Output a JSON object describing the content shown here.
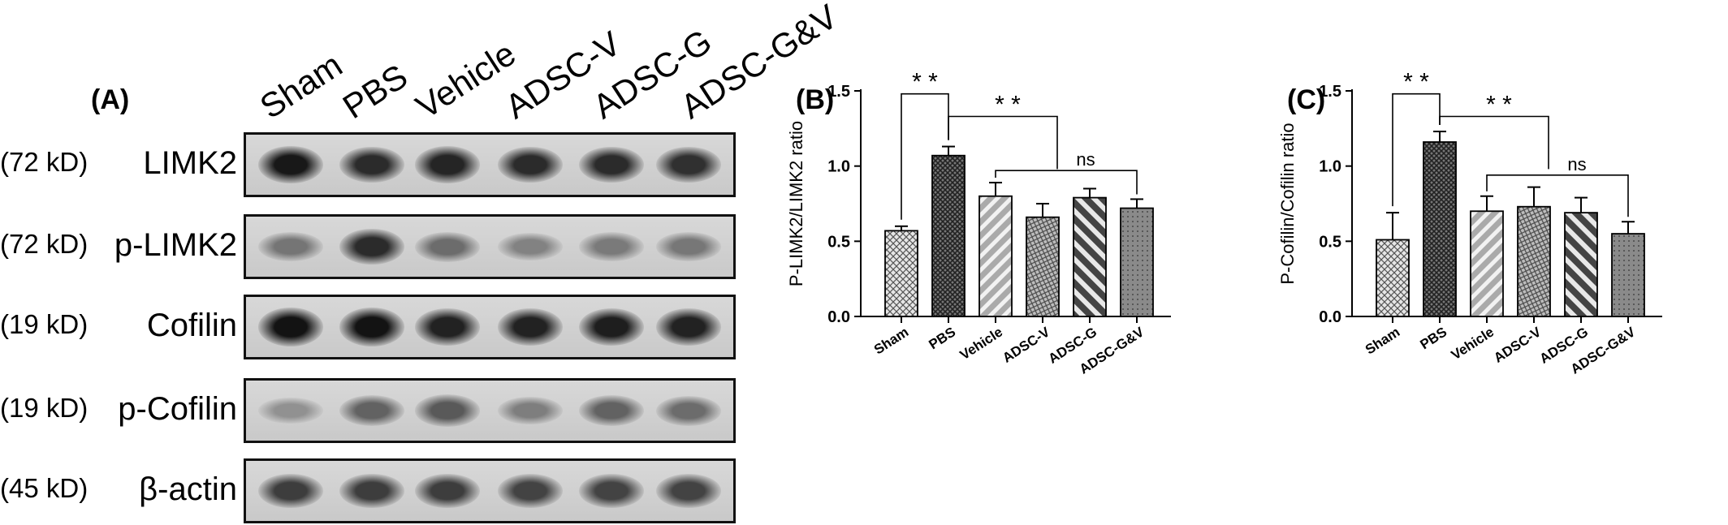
{
  "panel_a": {
    "label": "(A)",
    "lanes": [
      "Sham",
      "PBS",
      "Vehicle",
      "ADSC-V",
      "ADSC-G",
      "ADSC-G&V"
    ],
    "rows": [
      {
        "kd": "(72 kD)",
        "protein": "LIMK2",
        "intensity": [
          0.95,
          0.85,
          0.88,
          0.85,
          0.85,
          0.82
        ]
      },
      {
        "kd": "(72 kD)",
        "protein": "p-LIMK2",
        "intensity": [
          0.45,
          0.85,
          0.5,
          0.38,
          0.42,
          0.44
        ]
      },
      {
        "kd": "(19 kD)",
        "protein": "Cofilin",
        "intensity": [
          0.98,
          0.98,
          0.9,
          0.9,
          0.92,
          0.9
        ]
      },
      {
        "kd": "(19 kD)",
        "protein": "p-Cofilin",
        "intensity": [
          0.3,
          0.55,
          0.6,
          0.4,
          0.55,
          0.5
        ]
      },
      {
        "kd": "(45 kD)",
        "protein": "β-actin",
        "intensity": [
          0.75,
          0.75,
          0.75,
          0.72,
          0.72,
          0.72
        ]
      }
    ]
  },
  "chart_data": [
    {
      "panel_label": "(B)",
      "type": "bar",
      "categories": [
        "Sham",
        "PBS",
        "Vehicle",
        "ADSC-V",
        "ADSC-G",
        "ADSC-G&V"
      ],
      "values": [
        0.57,
        1.07,
        0.8,
        0.66,
        0.79,
        0.72
      ],
      "errors": [
        0.03,
        0.06,
        0.09,
        0.09,
        0.06,
        0.06
      ],
      "ylabel": "P-LIMK2/LIMK2 ratio",
      "ylim": [
        0,
        1.5
      ],
      "yticks": [
        "0.0",
        "0.5",
        "1.0",
        "1.5"
      ],
      "significance": [
        {
          "label": "* *",
          "from": 0,
          "to": 1
        },
        {
          "label": "* *",
          "from": 1,
          "to": 3
        },
        {
          "label": "ns",
          "from": 2,
          "to": 5
        }
      ]
    },
    {
      "panel_label": "(C)",
      "type": "bar",
      "categories": [
        "Sham",
        "PBS",
        "Vehicle",
        "ADSC-V",
        "ADSC-G",
        "ADSC-G&V"
      ],
      "values": [
        0.51,
        1.16,
        0.7,
        0.73,
        0.69,
        0.55
      ],
      "errors": [
        0.18,
        0.07,
        0.1,
        0.13,
        0.1,
        0.08
      ],
      "ylabel": "P-Cofilin/Cofilin ratio",
      "ylim": [
        0,
        1.5
      ],
      "yticks": [
        "0.0",
        "0.5",
        "1.0",
        "1.5"
      ],
      "significance": [
        {
          "label": "* *",
          "from": 0,
          "to": 1
        },
        {
          "label": "* *",
          "from": 1,
          "to": 3
        },
        {
          "label": "ns",
          "from": 2,
          "to": 5
        }
      ]
    }
  ]
}
